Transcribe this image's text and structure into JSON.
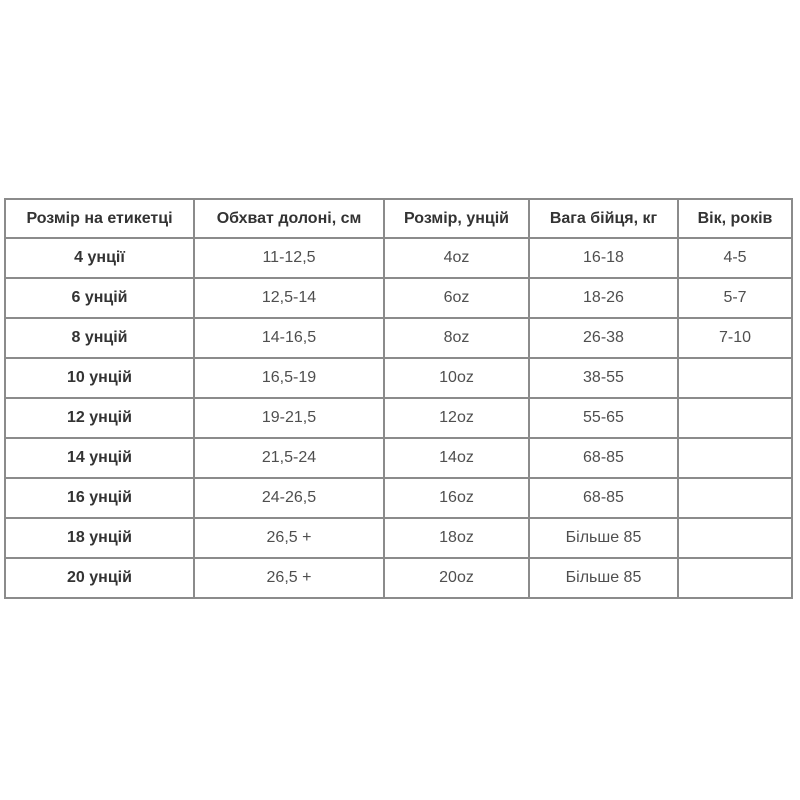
{
  "page": {
    "background": "#ffffff"
  },
  "colors": {
    "border": "#8b8b8b",
    "header_text": "#333333",
    "cell_text": "#4f4f4f"
  },
  "table": {
    "columns": [
      "Розмір на етикетці",
      "Обхват долоні, см",
      "Розмір, унцій",
      "Вага бійця, кг",
      "Вік, років"
    ],
    "rows": [
      [
        "4 унції",
        "11-12,5",
        "4oz",
        "16-18",
        "4-5"
      ],
      [
        "6 унцій",
        "12,5-14",
        "6oz",
        "18-26",
        "5-7"
      ],
      [
        "8 унцій",
        "14-16,5",
        "8oz",
        "26-38",
        "7-10"
      ],
      [
        "10 унцій",
        "16,5-19",
        "10oz",
        "38-55",
        ""
      ],
      [
        "12 унцій",
        "19-21,5",
        "12oz",
        "55-65",
        ""
      ],
      [
        "14 унцій",
        "21,5-24",
        "14oz",
        "68-85",
        ""
      ],
      [
        "16 унцій",
        "24-26,5",
        "16oz",
        "68-85",
        ""
      ],
      [
        "18 унцій",
        "26,5 +",
        "18oz",
        "Більше 85",
        ""
      ],
      [
        "20 унцій",
        "26,5 +",
        "20oz",
        "Більше 85",
        ""
      ]
    ]
  },
  "chart_data": {
    "type": "table",
    "title": "",
    "columns": [
      "Розмір на етикетці",
      "Обхват долоні, см",
      "Розмір, унцій",
      "Вага бійця, кг",
      "Вік, років"
    ],
    "rows": [
      [
        "4 унції",
        "11-12,5",
        "4oz",
        "16-18",
        "4-5"
      ],
      [
        "6 унцій",
        "12,5-14",
        "6oz",
        "18-26",
        "5-7"
      ],
      [
        "8 унцій",
        "14-16,5",
        "8oz",
        "26-38",
        "7-10"
      ],
      [
        "10 унцій",
        "16,5-19",
        "10oz",
        "38-55",
        ""
      ],
      [
        "12 унцій",
        "19-21,5",
        "12oz",
        "55-65",
        ""
      ],
      [
        "14 унцій",
        "21,5-24",
        "14oz",
        "68-85",
        ""
      ],
      [
        "16 унцій",
        "24-26,5",
        "16oz",
        "68-85",
        ""
      ],
      [
        "18 унцій",
        "26,5 +",
        "18oz",
        "Більше 85",
        ""
      ],
      [
        "20 унцій",
        "26,5 +",
        "20oz",
        "Більше 85",
        ""
      ]
    ]
  }
}
